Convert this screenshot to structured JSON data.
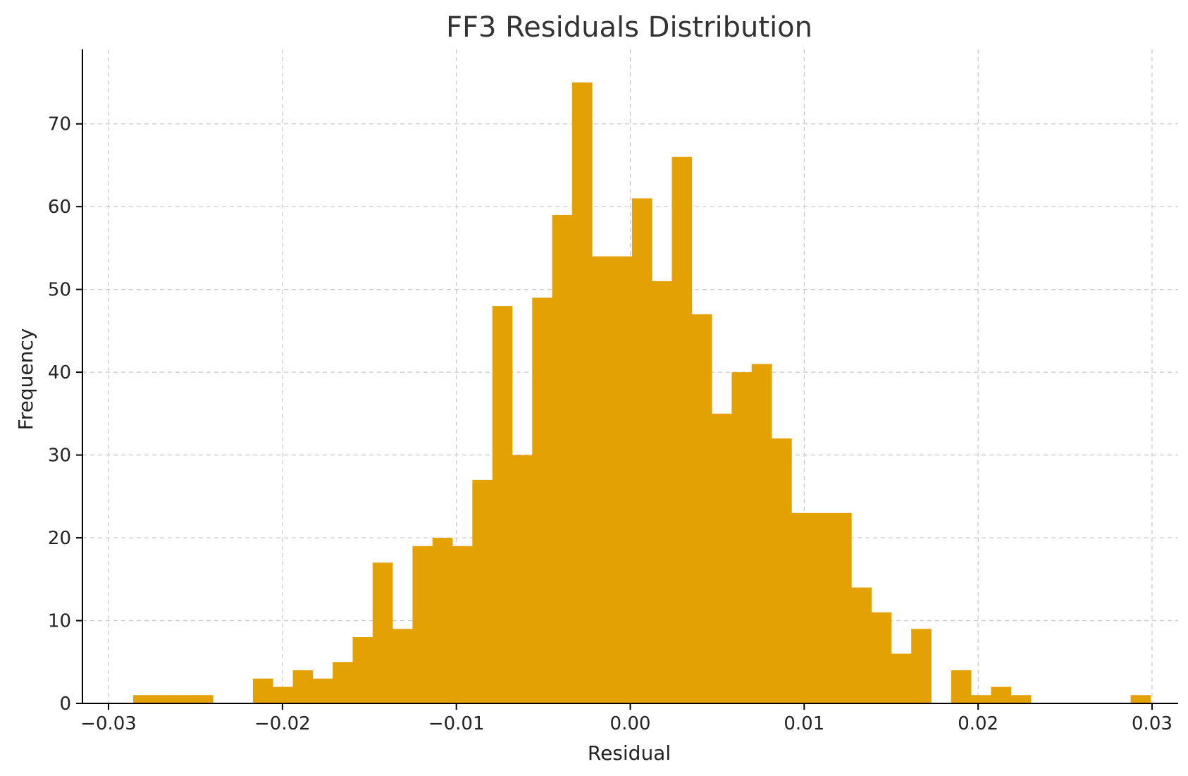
{
  "chart_data": {
    "type": "bar",
    "title": "FF3 Residuals Distribution",
    "xlabel": "Residual",
    "ylabel": "Frequency",
    "xlim": [
      -0.0315,
      0.0315
    ],
    "ylim": [
      0,
      79
    ],
    "xticks": [
      -0.03,
      -0.02,
      -0.01,
      0.0,
      0.01,
      0.02,
      0.03
    ],
    "xtick_labels": [
      "−0.03",
      "−0.02",
      "−0.01",
      "0.00",
      "0.01",
      "0.02",
      "0.03"
    ],
    "yticks": [
      0,
      10,
      20,
      30,
      40,
      50,
      60,
      70
    ],
    "ytick_labels": [
      "0",
      "10",
      "20",
      "30",
      "40",
      "50",
      "60",
      "70"
    ],
    "grid": true,
    "color": "#E3A103",
    "bin_start": -0.02858,
    "bin_width": 0.001147,
    "values": [
      1,
      1,
      1,
      1,
      0,
      0,
      3,
      2,
      4,
      3,
      5,
      8,
      17,
      9,
      19,
      20,
      19,
      27,
      48,
      30,
      49,
      59,
      75,
      54,
      54,
      61,
      51,
      66,
      47,
      35,
      40,
      41,
      32,
      23,
      23,
      23,
      14,
      11,
      6,
      9,
      0,
      4,
      1,
      2,
      1,
      0,
      0,
      0,
      0,
      0,
      1
    ]
  }
}
